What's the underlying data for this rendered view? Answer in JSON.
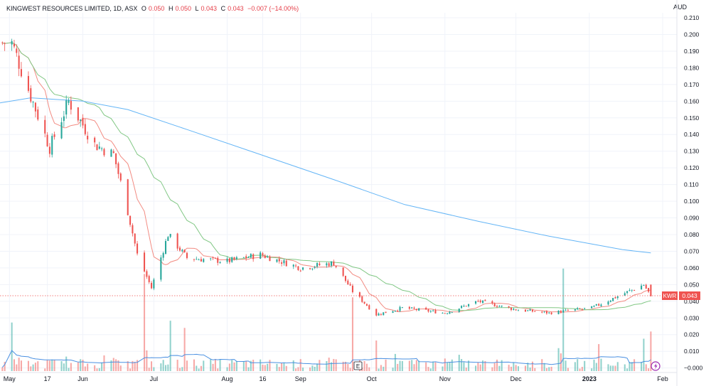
{
  "header": {
    "symbol_line": "KINGWEST RESOURCES LIMITED, 1D, ASX",
    "open_label": "O",
    "open": "0.050",
    "high_label": "H",
    "high": "0.050",
    "low_label": "L",
    "low": "0.043",
    "close_label": "C",
    "close": "0.043",
    "change": "−0.007 (−14.00%)"
  },
  "currency": "AUD",
  "price_tag": {
    "ticker": "KWR",
    "value": "0.043"
  },
  "event_markers": {
    "earnings": "E",
    "dividend_icon": "lightning-icon"
  },
  "colors": {
    "up": "#26a69a",
    "down": "#ef5350",
    "ma_fast": "#f28b82",
    "ma_mid": "#81c784",
    "ma_slow": "#64b5f6",
    "vol_ma": "#4a90e2"
  },
  "chart_data": {
    "type": "candlestick",
    "y_ticks": [
      "0.210",
      "0.200",
      "0.190",
      "0.180",
      "0.170",
      "0.160",
      "0.150",
      "0.140",
      "0.130",
      "0.120",
      "0.110",
      "0.100",
      "0.090",
      "0.080",
      "0.070",
      "0.060",
      "0.050",
      "0.040",
      "0.030",
      "0.020",
      "0.010",
      "−0.000"
    ],
    "ylim": [
      -0.001,
      0.213
    ],
    "x_ticks": [
      "May",
      "17",
      "Jun",
      "Jul",
      "Aug",
      "16",
      "Sep",
      "Oct",
      "Nov",
      "Dec",
      "2023",
      "Feb"
    ],
    "x_tick_dates": [
      "2022-05-01",
      "2022-05-17",
      "2022-06-01",
      "2022-07-01",
      "2022-08-01",
      "2022-08-16",
      "2022-09-01",
      "2022-10-01",
      "2022-11-01",
      "2022-12-01",
      "2023-01-01",
      "2023-02-01"
    ],
    "date_range": [
      "2022-04-27",
      "2023-02-07"
    ],
    "last_price": 0.043,
    "key_closes": [
      {
        "date": "2022-05-02",
        "close": 0.195
      },
      {
        "date": "2022-05-10",
        "close": 0.163
      },
      {
        "date": "2022-05-18",
        "close": 0.132
      },
      {
        "date": "2022-05-26",
        "close": 0.16
      },
      {
        "date": "2022-06-06",
        "close": 0.134
      },
      {
        "date": "2022-06-14",
        "close": 0.128
      },
      {
        "date": "2022-06-20",
        "close": 0.094
      },
      {
        "date": "2022-06-24",
        "close": 0.068
      },
      {
        "date": "2022-06-30",
        "close": 0.048
      },
      {
        "date": "2022-07-07",
        "close": 0.08
      },
      {
        "date": "2022-07-15",
        "close": 0.066
      },
      {
        "date": "2022-08-01",
        "close": 0.064
      },
      {
        "date": "2022-08-15",
        "close": 0.068
      },
      {
        "date": "2022-09-01",
        "close": 0.06
      },
      {
        "date": "2022-09-15",
        "close": 0.063
      },
      {
        "date": "2022-09-23",
        "close": 0.046
      },
      {
        "date": "2022-10-03",
        "close": 0.032
      },
      {
        "date": "2022-10-14",
        "close": 0.036
      },
      {
        "date": "2022-11-01",
        "close": 0.033
      },
      {
        "date": "2022-11-15",
        "close": 0.04
      },
      {
        "date": "2022-12-01",
        "close": 0.035
      },
      {
        "date": "2022-12-15",
        "close": 0.033
      },
      {
        "date": "2023-01-02",
        "close": 0.036
      },
      {
        "date": "2023-01-13",
        "close": 0.043
      },
      {
        "date": "2023-01-24",
        "close": 0.05
      },
      {
        "date": "2023-01-27",
        "close": 0.043
      }
    ],
    "ma_slow_points": [
      {
        "date": "2022-04-27",
        "value": 0.159
      },
      {
        "date": "2022-05-10",
        "value": 0.162
      },
      {
        "date": "2022-06-01",
        "value": 0.16
      },
      {
        "date": "2022-06-20",
        "value": 0.155
      },
      {
        "date": "2022-07-15",
        "value": 0.143
      },
      {
        "date": "2022-08-15",
        "value": 0.128
      },
      {
        "date": "2022-09-15",
        "value": 0.113
      },
      {
        "date": "2022-10-15",
        "value": 0.098
      },
      {
        "date": "2022-11-15",
        "value": 0.088
      },
      {
        "date": "2022-12-15",
        "value": 0.079
      },
      {
        "date": "2023-01-15",
        "value": 0.071
      },
      {
        "date": "2023-01-27",
        "value": 0.069
      }
    ]
  }
}
